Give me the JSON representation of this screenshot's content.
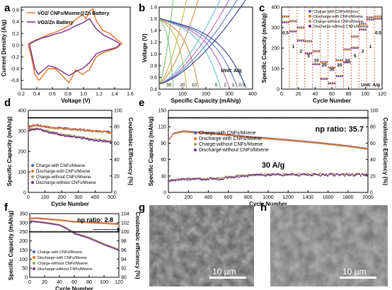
{
  "chart_data": [
    {
      "panel": "a",
      "type": "line",
      "xlabel": "Voltage (V)",
      "ylabel": "Current Density (A/g)",
      "xlim": [
        0.1,
        1.7
      ],
      "ylim": [
        -0.75,
        0.65
      ],
      "xticks": [
        "0.2",
        "0.4",
        "0.6",
        "0.8",
        "1.0",
        "1.2",
        "1.4",
        "1.6"
      ],
      "yticks": [
        "-0.6",
        "-0.4",
        "-0.2",
        "0.0",
        "0.2",
        "0.4",
        "0.6"
      ],
      "legend_position": "top-left",
      "series": [
        {
          "name": "VO2/ CNFs/Mxene@Zn Battery",
          "color": "#e8711a",
          "x": [
            0.2,
            0.3,
            0.4,
            0.5,
            0.6,
            0.7,
            0.8,
            0.9,
            1.0,
            1.05,
            1.1,
            1.15,
            1.2,
            1.3,
            1.4,
            1.5,
            1.58,
            1.5,
            1.4,
            1.3,
            1.2,
            1.1,
            1.0,
            0.9,
            0.85,
            0.8,
            0.7,
            0.6,
            0.5,
            0.4,
            0.36,
            0.3,
            0.25,
            0.2
          ],
          "y": [
            0.02,
            0.08,
            0.13,
            0.18,
            0.22,
            0.27,
            0.33,
            0.44,
            0.52,
            0.45,
            0.58,
            0.62,
            0.42,
            0.25,
            0.2,
            0.1,
            0.03,
            -0.05,
            -0.09,
            -0.13,
            -0.2,
            -0.42,
            -0.5,
            -0.42,
            -0.54,
            -0.64,
            -0.52,
            -0.4,
            -0.4,
            -0.55,
            -0.6,
            -0.5,
            -0.2,
            0.02
          ]
        },
        {
          "name": "VO2/Zn Battery",
          "color": "#7a2a8c",
          "x": [
            0.22,
            0.3,
            0.4,
            0.5,
            0.6,
            0.7,
            0.8,
            0.9,
            1.0,
            1.1,
            1.2,
            1.3,
            1.4,
            1.5,
            1.55,
            1.5,
            1.4,
            1.3,
            1.2,
            1.1,
            1.0,
            0.9,
            0.8,
            0.7,
            0.6,
            0.5,
            0.4,
            0.35,
            0.3,
            0.22
          ],
          "y": [
            0.02,
            0.07,
            0.12,
            0.15,
            0.19,
            0.22,
            0.27,
            0.33,
            0.38,
            0.45,
            0.28,
            0.18,
            0.12,
            0.06,
            0.02,
            -0.04,
            -0.07,
            -0.1,
            -0.15,
            -0.3,
            -0.4,
            -0.45,
            -0.52,
            -0.45,
            -0.38,
            -0.35,
            -0.45,
            -0.5,
            -0.4,
            0.02
          ]
        }
      ]
    },
    {
      "panel": "b",
      "type": "line",
      "xlabel": "Specific Capacity (mAh/g)",
      "ylabel": "Voltage (V)",
      "xlim": [
        0,
        400
      ],
      "ylim": [
        0.2,
        1.8
      ],
      "xticks": [
        "0",
        "100",
        "200",
        "300",
        "400"
      ],
      "yticks": [
        "0.4",
        "0.6",
        "0.8",
        "1.0",
        "1.2",
        "1.4",
        "1.6",
        "1.8"
      ],
      "annotation_unit": "Unit: A/g",
      "rate_labels": [
        "30",
        "20",
        "10",
        "5",
        "2",
        "1",
        "0.5"
      ],
      "curves": [
        {
          "rate": "30",
          "color": "#7cc576",
          "capacity": 60
        },
        {
          "rate": "20",
          "color": "#c5b84a",
          "capacity": 118
        },
        {
          "rate": "10",
          "color": "#d08a4a",
          "capacity": 168
        },
        {
          "rate": "5",
          "color": "#62c4c7",
          "capacity": 262
        },
        {
          "rate": "2",
          "color": "#b066b5",
          "capacity": 300
        },
        {
          "rate": "1",
          "color": "#5e78c8",
          "capacity": 335
        },
        {
          "rate": "0.5",
          "color": "#2d3b8c",
          "capacity": 372
        }
      ]
    },
    {
      "panel": "c",
      "type": "scatter",
      "xlabel": "Cycle Number",
      "ylabel": "Specific Capacity (mAh/g)",
      "xlim": [
        0,
        130
      ],
      "ylim": [
        0,
        450
      ],
      "xticks": [
        "0",
        "20",
        "40",
        "60",
        "80",
        "100",
        "120"
      ],
      "yticks": [
        "0",
        "100",
        "200",
        "300",
        "400"
      ],
      "annotation_unit": "Unit: A/g",
      "rate_labels": [
        "0.5",
        "1",
        "2",
        "5",
        "10",
        "20",
        "30",
        "20",
        "10",
        "5",
        "2",
        "1",
        "0.5"
      ],
      "legend_position": "top-right",
      "series": [
        {
          "name": "Charge-with CNFs/Mxene",
          "color": "#4a5bbf",
          "segments": [
            [
              0,
              10,
              400
            ],
            [
              10,
              20,
              375
            ],
            [
              20,
              30,
              340
            ],
            [
              30,
              40,
              265
            ],
            [
              40,
              50,
              210
            ],
            [
              50,
              60,
              150
            ],
            [
              60,
              70,
              120
            ],
            [
              70,
              80,
              160
            ],
            [
              80,
              90,
              220
            ],
            [
              90,
              100,
              290
            ],
            [
              100,
              110,
              360
            ],
            [
              110,
              120,
              395
            ],
            [
              120,
              130,
              400
            ]
          ]
        },
        {
          "name": "Discharge-with CNFs/Mxene",
          "color": "#e8711a",
          "segments": [
            [
              0,
              10,
              395
            ],
            [
              10,
              20,
              370
            ],
            [
              20,
              30,
              335
            ],
            [
              30,
              40,
              260
            ],
            [
              40,
              50,
              205
            ],
            [
              50,
              60,
              145
            ],
            [
              60,
              70,
              118
            ],
            [
              70,
              80,
              155
            ],
            [
              80,
              90,
              215
            ],
            [
              90,
              100,
              285
            ],
            [
              100,
              110,
              355
            ],
            [
              110,
              120,
              390
            ],
            [
              120,
              130,
              398
            ]
          ]
        },
        {
          "name": "Charge-without CNFs/Mxene",
          "color": "#9aa04a",
          "segments": [
            [
              0,
              10,
              370
            ],
            [
              10,
              20,
              320
            ],
            [
              20,
              30,
              270
            ],
            [
              30,
              40,
              200
            ],
            [
              40,
              50,
              140
            ],
            [
              50,
              60,
              60
            ],
            [
              60,
              70,
              35
            ],
            [
              70,
              80,
              75
            ],
            [
              80,
              90,
              150
            ],
            [
              90,
              100,
              230
            ],
            [
              100,
              110,
              330
            ],
            [
              110,
              120,
              385
            ],
            [
              120,
              130,
              390
            ]
          ]
        },
        {
          "name": "Discharge-without CNFs/Mxene",
          "color": "#7a2a8c",
          "segments": [
            [
              0,
              10,
              365
            ],
            [
              10,
              20,
              315
            ],
            [
              20,
              30,
              265
            ],
            [
              30,
              40,
              195
            ],
            [
              40,
              50,
              135
            ],
            [
              50,
              60,
              55
            ],
            [
              60,
              70,
              30
            ],
            [
              70,
              80,
              70
            ],
            [
              80,
              90,
              145
            ],
            [
              90,
              100,
              225
            ],
            [
              100,
              110,
              325
            ],
            [
              110,
              120,
              380
            ],
            [
              120,
              130,
              385
            ]
          ]
        }
      ]
    },
    {
      "panel": "d",
      "type": "scatter",
      "xlabel": "Cycle Number",
      "ylabel": "Specific Capacity (mAh/g)",
      "ylabel_right": "Coulombic Efficiency (%)",
      "xlim": [
        0,
        500
      ],
      "ylim": [
        0,
        450
      ],
      "ylim_right": [
        0,
        110
      ],
      "xticks": [
        "0",
        "100",
        "200",
        "300",
        "400",
        "500"
      ],
      "yticks": [
        "0",
        "100",
        "200",
        "300",
        "400"
      ],
      "yticks_right": [
        "0",
        "20",
        "40",
        "60",
        "80",
        "100"
      ],
      "legend_position": "bottom-left",
      "series": [
        {
          "name": "Charge-with CNFs/Mxene",
          "color": "#4a5bbf",
          "x": [
            0,
            50,
            100,
            200,
            300,
            400,
            500
          ],
          "y": [
            360,
            370,
            360,
            352,
            345,
            338,
            330
          ]
        },
        {
          "name": "Discharge-with CNFs/Mxene",
          "color": "#e8711a",
          "x": [
            0,
            50,
            100,
            200,
            300,
            400,
            500
          ],
          "y": [
            358,
            368,
            358,
            350,
            343,
            336,
            328
          ]
        },
        {
          "name": "Charge-without CNFs/Mxene",
          "color": "#9aa04a",
          "x": [
            0,
            50,
            100,
            200,
            300,
            400,
            500
          ],
          "y": [
            345,
            355,
            340,
            320,
            305,
            290,
            280
          ]
        },
        {
          "name": "Discharge-without CNFs/Mxene",
          "color": "#7a2a8c",
          "x": [
            0,
            50,
            100,
            200,
            300,
            400,
            500
          ],
          "y": [
            340,
            350,
            335,
            315,
            300,
            285,
            275
          ]
        },
        {
          "name": "Coulombic Efficiency",
          "color": "#111111",
          "axis": "right",
          "x": [
            0,
            100,
            200,
            300,
            400,
            500
          ],
          "y": [
            100,
            100,
            100,
            100,
            100,
            100
          ]
        }
      ]
    },
    {
      "panel": "e",
      "type": "scatter",
      "xlabel": "Cycle Number",
      "ylabel": "Specific Capacity (mAh/g)",
      "ylabel_right": "Coulombic Efficiency (%)",
      "xlim": [
        0,
        2000
      ],
      "ylim": [
        0,
        150
      ],
      "ylim_right": [
        0,
        110
      ],
      "xticks": [
        "0",
        "200",
        "400",
        "600",
        "800",
        "1000",
        "1200",
        "1400",
        "1600",
        "1800",
        "2000"
      ],
      "yticks": [
        "0",
        "30",
        "60",
        "90",
        "120",
        "150"
      ],
      "yticks_right": [
        "0",
        "20",
        "40",
        "60",
        "80",
        "100"
      ],
      "annotations": [
        "np ratio: 35.7",
        "30 A/g"
      ],
      "legend_position": "upper-left",
      "series": [
        {
          "name": "Charge-with CNFs/Mxene",
          "color": "#4a5bbf",
          "x": [
            0,
            50,
            150,
            300,
            500,
            800,
            1000,
            1200,
            1500,
            1800,
            2000
          ],
          "y": [
            95,
            108,
            112,
            110,
            107,
            102,
            99,
            96,
            91,
            85,
            80
          ]
        },
        {
          "name": "Discharge-with CNFs/Mxene",
          "color": "#e8711a",
          "x": [
            0,
            50,
            150,
            300,
            500,
            800,
            1000,
            1200,
            1500,
            1800,
            2000
          ],
          "y": [
            94,
            107,
            111,
            109,
            106,
            101,
            98,
            95,
            90,
            84,
            79
          ]
        },
        {
          "name": "Charge-without CNFs/Mxene",
          "color": "#9aa04a",
          "x": [
            0,
            100,
            300,
            500,
            600,
            800,
            1000,
            1400,
            2000
          ],
          "y": [
            22,
            24,
            26,
            25,
            28,
            32,
            33,
            33,
            33
          ]
        },
        {
          "name": "Discharge-without CNFs/Mxene",
          "color": "#7a2a8c",
          "x": [
            0,
            100,
            300,
            500,
            600,
            800,
            1000,
            1400,
            2000
          ],
          "y": [
            21,
            23,
            25,
            24,
            27,
            31,
            32,
            32,
            32
          ]
        },
        {
          "name": "Coulombic Efficiency",
          "color": "#111111",
          "axis": "right",
          "x": [
            0,
            500,
            1000,
            1500,
            2000
          ],
          "y": [
            100,
            100,
            100,
            100,
            100
          ]
        }
      ]
    },
    {
      "panel": "f",
      "type": "scatter",
      "xlabel": "Cycle Number",
      "ylabel": "Specific Capacity (mAh/g)",
      "ylabel_right": "Coulombic efficiency (%)",
      "xlim": [
        0,
        120
      ],
      "ylim": [
        0,
        400
      ],
      "ylim_right": [
        90,
        104
      ],
      "xticks": [
        "0",
        "20",
        "40",
        "60",
        "80",
        "100",
        "120"
      ],
      "yticks": [
        "0",
        "50",
        "100",
        "150",
        "200",
        "250",
        "300",
        "350"
      ],
      "yticks_right": [
        "90",
        "92",
        "94",
        "96",
        "98",
        "100",
        "102",
        "104"
      ],
      "annotations": [
        "np ratio: 2.8"
      ],
      "legend_position": "bottom-left",
      "series": [
        {
          "name": "Charge-with CNFs/Mxene",
          "color": "#4a5bbf",
          "x": [
            0,
            10,
            20,
            40,
            60,
            80,
            100,
            120
          ],
          "y": [
            370,
            372,
            368,
            360,
            350,
            345,
            340,
            335
          ]
        },
        {
          "name": "Discharge-with CNFs/Mxene",
          "color": "#e8711a",
          "x": [
            0,
            10,
            20,
            40,
            60,
            80,
            100,
            120
          ],
          "y": [
            368,
            370,
            366,
            358,
            348,
            343,
            338,
            333
          ]
        },
        {
          "name": "Charge-without CNFs/Mxene",
          "color": "#9aa04a",
          "x": [
            0,
            10,
            20,
            40,
            50,
            60,
            80,
            100,
            120
          ],
          "y": [
            355,
            350,
            345,
            330,
            310,
            280,
            250,
            210,
            175
          ]
        },
        {
          "name": "Discharge-without CNFs/Mxene",
          "color": "#7a2a8c",
          "x": [
            0,
            10,
            20,
            40,
            50,
            60,
            80,
            100,
            120
          ],
          "y": [
            352,
            348,
            342,
            328,
            305,
            275,
            245,
            205,
            170
          ]
        },
        {
          "name": "Coulombic efficiency",
          "color": "#111111",
          "axis": "right",
          "x": [
            0,
            20,
            40,
            60,
            80,
            100,
            120
          ],
          "y": [
            100,
            100,
            100,
            100,
            100,
            100,
            100
          ]
        }
      ]
    }
  ],
  "panels": {
    "a": "a",
    "b": "b",
    "c": "c",
    "d": "d",
    "e": "e",
    "f": "f",
    "g": "g",
    "h": "h"
  },
  "sem_images": [
    {
      "panel": "g",
      "scale_bar": "10 μm"
    },
    {
      "panel": "h",
      "scale_bar": "10 μm"
    }
  ]
}
